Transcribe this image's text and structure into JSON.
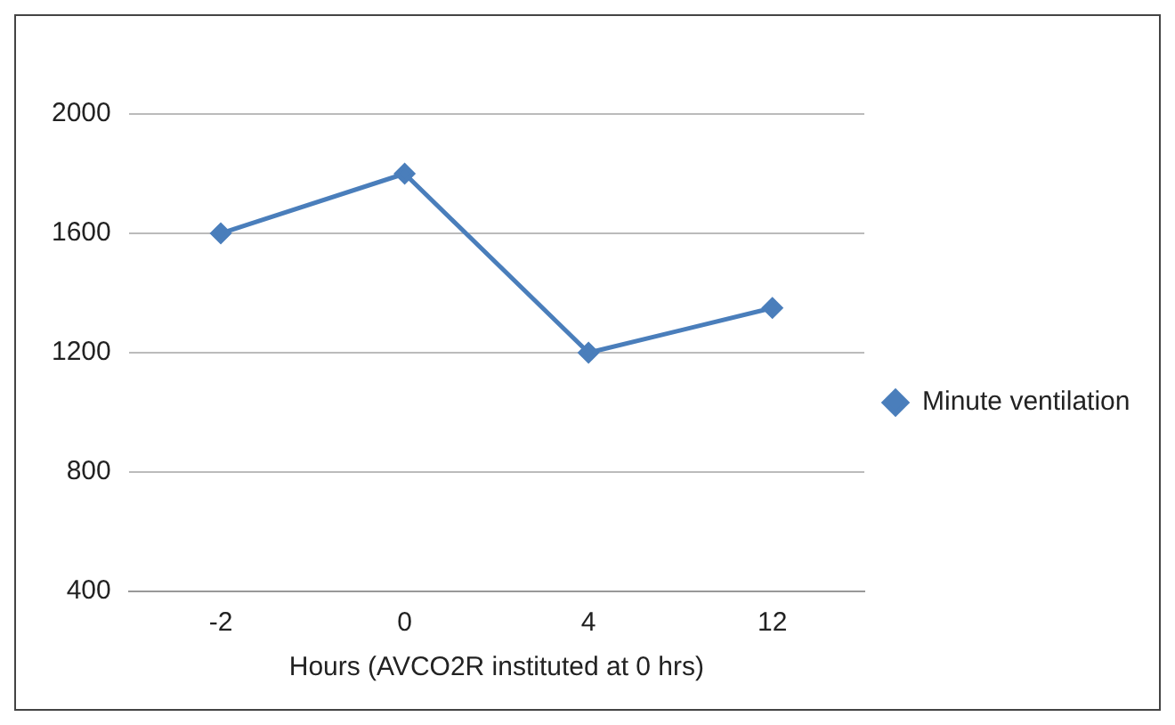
{
  "chart_data": {
    "type": "line",
    "xlabel": "Hours (AVCO2R instituted at 0 hrs)",
    "categories": [
      "-2",
      "0",
      "4",
      "12"
    ],
    "series": [
      {
        "name": "Minute ventilation",
        "color": "#4a7ebb",
        "values": [
          1600,
          1800,
          1200,
          1350
        ]
      }
    ],
    "ylim": [
      400,
      2000
    ],
    "yticks": [
      400,
      800,
      1200,
      1600,
      2000
    ],
    "grid": "y",
    "legend": "right",
    "marker": "diamond",
    "line_style": "solid"
  }
}
